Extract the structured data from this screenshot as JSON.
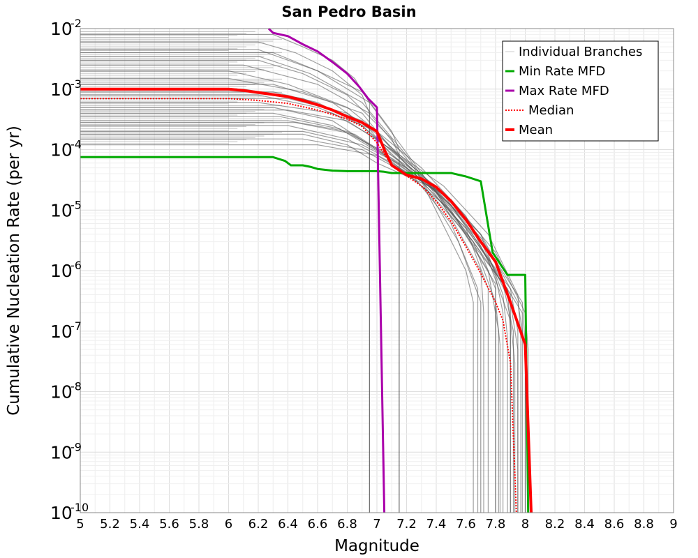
{
  "chart_data": {
    "type": "line",
    "title": "San Pedro Basin",
    "xlabel": "Magnitude",
    "ylabel": "Cumulative Nucleation Rate (per yr)",
    "xlim": [
      5,
      9
    ],
    "ylim": [
      1e-10,
      0.01
    ],
    "yscale": "log",
    "grid": true,
    "legend_position": "top-right",
    "x_ticks": [
      "5",
      "5.2",
      "5.4",
      "5.6",
      "5.8",
      "6",
      "6.2",
      "6.4",
      "6.6",
      "6.8",
      "7",
      "7.2",
      "7.4",
      "7.6",
      "7.8",
      "8",
      "8.2",
      "8.4",
      "8.6",
      "8.8",
      "9"
    ],
    "y_ticks": [
      {
        "base": "10",
        "exp": "-2"
      },
      {
        "base": "10",
        "exp": "-3"
      },
      {
        "base": "10",
        "exp": "-4"
      },
      {
        "base": "10",
        "exp": "-5"
      },
      {
        "base": "10",
        "exp": "-6"
      },
      {
        "base": "10",
        "exp": "-7"
      },
      {
        "base": "10",
        "exp": "-8"
      },
      {
        "base": "10",
        "exp": "-9"
      },
      {
        "base": "10",
        "exp": "-10"
      }
    ],
    "series": [
      {
        "name": "Individual Branches",
        "color": "#505050",
        "style": "thin",
        "note_hidden": "",
        "branches": [
          {
            "x": [
              5,
              6.3,
              6.5,
              6.7,
              6.85,
              6.95,
              6.95
            ],
            "y": [
              0.008,
              0.008,
              0.005,
              0.003,
              0.0015,
              0.0006,
              1e-10
            ]
          },
          {
            "x": [
              5,
              6.2,
              6.45,
              6.7,
              6.9,
              6.95,
              6.95
            ],
            "y": [
              0.006,
              0.006,
              0.004,
              0.002,
              0.0008,
              0.0004,
              1e-10
            ]
          },
          {
            "x": [
              5,
              6.3,
              6.6,
              6.9,
              7.1,
              7.15,
              7.15
            ],
            "y": [
              0.004,
              0.004,
              0.002,
              0.0009,
              0.0002,
              0.0001,
              1e-10
            ]
          },
          {
            "x": [
              5,
              6.2,
              6.5,
              6.8,
              7.1,
              7.15,
              7.15
            ],
            "y": [
              0.003,
              0.003,
              0.0018,
              0.0008,
              0.00015,
              8e-05,
              1e-10
            ]
          },
          {
            "x": [
              5,
              6,
              6.4,
              6.8,
              7.0,
              7.3,
              7.6,
              7.65,
              7.65
            ],
            "y": [
              0.002,
              0.002,
              0.0012,
              0.0005,
              0.0002,
              3e-05,
              1e-06,
              3e-07,
              1e-10
            ]
          },
          {
            "x": [
              5,
              6,
              6.5,
              6.9,
              7.1,
              7.4,
              7.7,
              7.72,
              7.72
            ],
            "y": [
              0.0015,
              0.0015,
              0.0009,
              0.0004,
              0.0001,
              2e-05,
              1e-06,
              2e-07,
              1e-10
            ]
          },
          {
            "x": [
              5,
              6.1,
              6.5,
              6.9,
              7.1,
              7.4,
              7.7,
              7.8,
              7.8
            ],
            "y": [
              0.001,
              0.001,
              0.0007,
              0.0003,
              8e-05,
              2e-05,
              2e-06,
              5e-07,
              1e-10
            ]
          },
          {
            "x": [
              5,
              6.2,
              6.6,
              7.0,
              7.3,
              7.6,
              7.8,
              7.85,
              7.85
            ],
            "y": [
              0.0008,
              0.0008,
              0.0005,
              0.0002,
              5e-05,
              8e-06,
              8e-07,
              2e-07,
              1e-10
            ]
          },
          {
            "x": [
              5,
              6.2,
              6.7,
              7.0,
              7.3,
              7.6,
              7.85,
              7.92,
              7.92
            ],
            "y": [
              0.0006,
              0.0006,
              0.0004,
              0.00015,
              4e-05,
              6e-06,
              6e-07,
              1e-07,
              1e-10
            ]
          },
          {
            "x": [
              5,
              6.3,
              6.7,
              7.0,
              7.3,
              7.6,
              7.9,
              7.95,
              7.95
            ],
            "y": [
              0.0005,
              0.0005,
              0.0003,
              0.0001,
              3e-05,
              5e-06,
              5e-07,
              1e-07,
              1e-10
            ]
          },
          {
            "x": [
              5,
              6.3,
              6.7,
              7.1,
              7.4,
              7.7,
              7.95,
              8.0,
              8.0
            ],
            "y": [
              0.0004,
              0.0004,
              0.00025,
              8e-05,
              2.5e-05,
              4e-06,
              3e-07,
              5e-08,
              1e-10
            ]
          },
          {
            "x": [
              5,
              6.4,
              6.8,
              7.1,
              7.4,
              7.7,
              7.9,
              7.95,
              7.95
            ],
            "y": [
              0.0003,
              0.0003,
              0.0002,
              7e-05,
              2e-05,
              3e-06,
              3e-07,
              5e-08,
              1e-10
            ]
          },
          {
            "x": [
              5,
              6.4,
              6.8,
              7.1,
              7.5,
              7.8,
              8.0,
              8.02,
              8.02
            ],
            "y": [
              0.00025,
              0.00025,
              0.00015,
              6e-05,
              1.5e-05,
              2e-06,
              2e-07,
              5e-08,
              1e-10
            ]
          },
          {
            "x": [
              5,
              6.5,
              6.9,
              7.2,
              7.5,
              7.75,
              7.9,
              7.93,
              7.93
            ],
            "y": [
              0.0002,
              0.0002,
              0.00012,
              5e-05,
              1.2e-05,
              1.5e-06,
              1.5e-07,
              3e-08,
              1e-10
            ]
          },
          {
            "x": [
              5,
              6.5,
              6.9,
              7.2,
              7.5,
              7.75,
              7.82,
              7.82
            ],
            "y": [
              0.00015,
              0.00015,
              0.0001,
              4e-05,
              1e-05,
              1e-06,
              1e-07,
              1e-10
            ]
          },
          {
            "x": [
              5,
              6.6,
              7.0,
              7.3,
              7.6,
              7.75,
              7.75
            ],
            "y": [
              0.00012,
              0.00012,
              8e-05,
              3e-05,
              5e-06,
              5e-07,
              1e-10
            ]
          },
          {
            "x": [
              5,
              6.4,
              6.8,
              7.05,
              7.3,
              7.7,
              7.85,
              7.88,
              7.88
            ],
            "y": [
              0.0007,
              0.0007,
              0.0004,
              0.00012,
              3.5e-05,
              4e-06,
              4e-07,
              8e-08,
              1e-10
            ]
          },
          {
            "x": [
              5,
              6.3,
              6.7,
              7.0,
              7.35,
              7.65,
              7.8,
              7.83,
              7.83
            ],
            "y": [
              0.0012,
              0.0012,
              0.0006,
              0.00018,
              3e-05,
              3e-06,
              3e-07,
              6e-08,
              1e-10
            ]
          },
          {
            "x": [
              5,
              6.1,
              6.6,
              6.95,
              7.25,
              7.55,
              7.7,
              7.7
            ],
            "y": [
              0.0025,
              0.0025,
              0.0012,
              0.0004,
              5e-05,
              3e-06,
              3e-07,
              1e-10
            ]
          },
          {
            "x": [
              5,
              6.5,
              6.8,
              7.0,
              7.4,
              7.7,
              7.98,
              8.0,
              8.0
            ],
            "y": [
              0.00018,
              0.00018,
              0.00012,
              6e-05,
              2.2e-05,
              3.5e-06,
              3e-07,
              6e-08,
              1e-10
            ]
          },
          {
            "x": [
              5,
              6.3,
              6.6,
              6.9,
              7.2,
              7.5,
              7.68,
              7.68
            ],
            "y": [
              0.0009,
              0.0009,
              0.0006,
              0.00025,
              5e-05,
              6e-06,
              5e-07,
              1e-10
            ]
          },
          {
            "x": [
              5,
              6.2,
              6.55,
              6.9,
              7.2,
              7.5,
              7.88,
              7.9,
              7.9
            ],
            "y": [
              0.0035,
              0.0035,
              0.0018,
              0.0006,
              8e-05,
              8e-06,
              5e-07,
              1e-07,
              1e-10
            ]
          },
          {
            "x": [
              5,
              6.35,
              6.75,
              7.05,
              7.35,
              7.65,
              7.9,
              7.9
            ],
            "y": [
              0.00035,
              0.00035,
              0.00022,
              8e-05,
              2e-05,
              3e-06,
              4e-07,
              1e-10
            ]
          },
          {
            "x": [
              5,
              6.45,
              6.85,
              7.15,
              7.45,
              7.7,
              7.98,
              7.98
            ],
            "y": [
              0.00028,
              0.00028,
              0.00018,
              6e-05,
              1.8e-05,
              2.5e-06,
              2e-07,
              1e-10
            ]
          },
          {
            "x": [
              5,
              6.2,
              6.6,
              6.95,
              7.25,
              7.55,
              7.8,
              7.8
            ],
            "y": [
              0.0045,
              0.0045,
              0.002,
              0.0006,
              6e-05,
              6e-06,
              6e-07,
              1e-10
            ]
          },
          {
            "x": [
              5,
              6.4,
              6.8,
              7.1,
              7.45,
              7.75,
              7.95,
              7.97,
              7.97
            ],
            "y": [
              0.00045,
              0.00045,
              0.0003,
              0.0001,
              2.5e-05,
              4e-06,
              4e-07,
              8e-08,
              1e-10
            ]
          }
        ]
      },
      {
        "name": "Min Rate MFD",
        "color": "#00aa00",
        "x": [
          5,
          6.3,
          6.38,
          6.42,
          6.5,
          6.55,
          6.6,
          6.7,
          6.8,
          6.9,
          7.0,
          7.05,
          7.1,
          7.2,
          7.3,
          7.5,
          7.6,
          7.7,
          7.78,
          7.88,
          8.0,
          8.02
        ],
        "y": [
          7.5e-05,
          7.5e-05,
          6.5e-05,
          5.5e-05,
          5.5e-05,
          5.2e-05,
          4.8e-05,
          4.5e-05,
          4.4e-05,
          4.4e-05,
          4.4e-05,
          4.3e-05,
          4.1e-05,
          4.1e-05,
          4.1e-05,
          4.1e-05,
          3.6e-05,
          3e-05,
          2e-06,
          8.5e-07,
          8.5e-07,
          1e-10
        ]
      },
      {
        "name": "Max Rate MFD",
        "color": "#aa00aa",
        "x": [
          6.27,
          6.3,
          6.4,
          6.5,
          6.6,
          6.7,
          6.8,
          6.88,
          6.94,
          7.0,
          7.05
        ],
        "y": [
          0.01,
          0.0085,
          0.0075,
          0.0055,
          0.0042,
          0.0028,
          0.0018,
          0.0011,
          0.0007,
          0.0005,
          1e-10
        ]
      },
      {
        "name": "Median",
        "color": "#ff0000",
        "dashed": true,
        "x": [
          5,
          6.0,
          6.2,
          6.4,
          6.6,
          6.8,
          6.9,
          7.0,
          7.1,
          7.2,
          7.3,
          7.4,
          7.5,
          7.6,
          7.7,
          7.8,
          7.85,
          7.9,
          7.94
        ],
        "y": [
          0.0007,
          0.0007,
          0.00065,
          0.00058,
          0.00045,
          0.00032,
          0.00024,
          0.00013,
          5.5e-05,
          3.7e-05,
          2.5e-05,
          1.4e-05,
          6.5e-06,
          2.5e-06,
          9e-07,
          3e-07,
          1.5e-07,
          3e-08,
          1e-10
        ]
      },
      {
        "name": "Mean",
        "color": "#ff0000",
        "x": [
          5,
          6.0,
          6.1,
          6.2,
          6.4,
          6.5,
          6.6,
          6.7,
          6.8,
          6.9,
          7.0,
          7.05,
          7.1,
          7.2,
          7.3,
          7.4,
          7.5,
          7.6,
          7.7,
          7.8,
          7.9,
          8.0,
          8.04
        ],
        "y": [
          0.001,
          0.001,
          0.00095,
          0.00088,
          0.00075,
          0.00065,
          0.00055,
          0.00045,
          0.00035,
          0.00028,
          0.0002,
          0.0001,
          5.5e-05,
          3.8e-05,
          3.3e-05,
          2.4e-05,
          1.4e-05,
          7e-06,
          3e-06,
          1.4e-06,
          3e-07,
          6e-08,
          1e-10
        ]
      }
    ],
    "legend": [
      {
        "label": "Individual Branches",
        "color": "#cccccc",
        "style": "thin"
      },
      {
        "label": "Min Rate MFD",
        "color": "#00aa00",
        "style": "solid"
      },
      {
        "label": "Max Rate MFD",
        "color": "#aa00aa",
        "style": "solid"
      },
      {
        "label": "Median",
        "color": "#ff0000",
        "style": "dotted"
      },
      {
        "label": "Mean",
        "color": "#ff0000",
        "style": "thick"
      }
    ]
  }
}
